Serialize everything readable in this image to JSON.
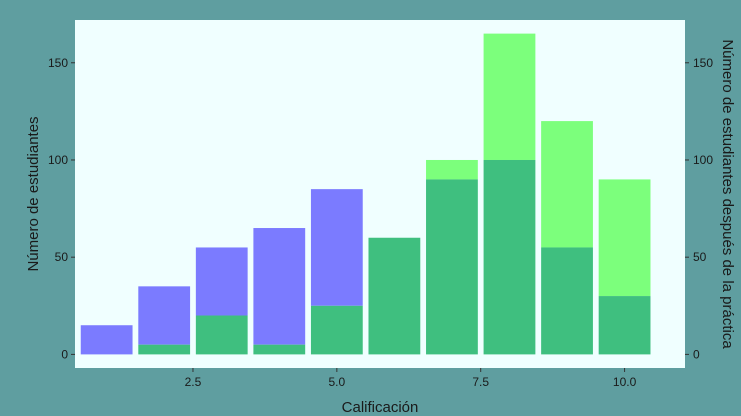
{
  "chart_data": {
    "type": "bar",
    "title": "",
    "xlabel": "Calificación",
    "ylabel": "Número de estudiantes",
    "ylabel_right": "Número de estudiantes después de la práctica",
    "x_ticks": [
      2.5,
      5.0,
      7.5,
      10.0
    ],
    "y_ticks": [
      0,
      50,
      100,
      150
    ],
    "xlim": [
      0.45,
      11.05
    ],
    "ylim": [
      -7,
      172
    ],
    "grid": false,
    "legend": "none",
    "colors": {
      "before": "#7b7bff",
      "after": "#7cff7c",
      "overlap": "#3fbf7f",
      "panel": "#f0ffff",
      "background": "#5f9ea0"
    },
    "series": [
      {
        "key": "before",
        "x": [
          1,
          2,
          3,
          4,
          5,
          6,
          7,
          8,
          9,
          10
        ],
        "values": [
          15,
          35,
          55,
          65,
          85,
          60,
          90,
          100,
          55,
          30
        ]
      },
      {
        "key": "after",
        "x": [
          1,
          2,
          3,
          4,
          5,
          6,
          7,
          8,
          9,
          10
        ],
        "values": [
          0,
          5,
          20,
          5,
          25,
          60,
          100,
          165,
          120,
          90
        ]
      }
    ]
  }
}
